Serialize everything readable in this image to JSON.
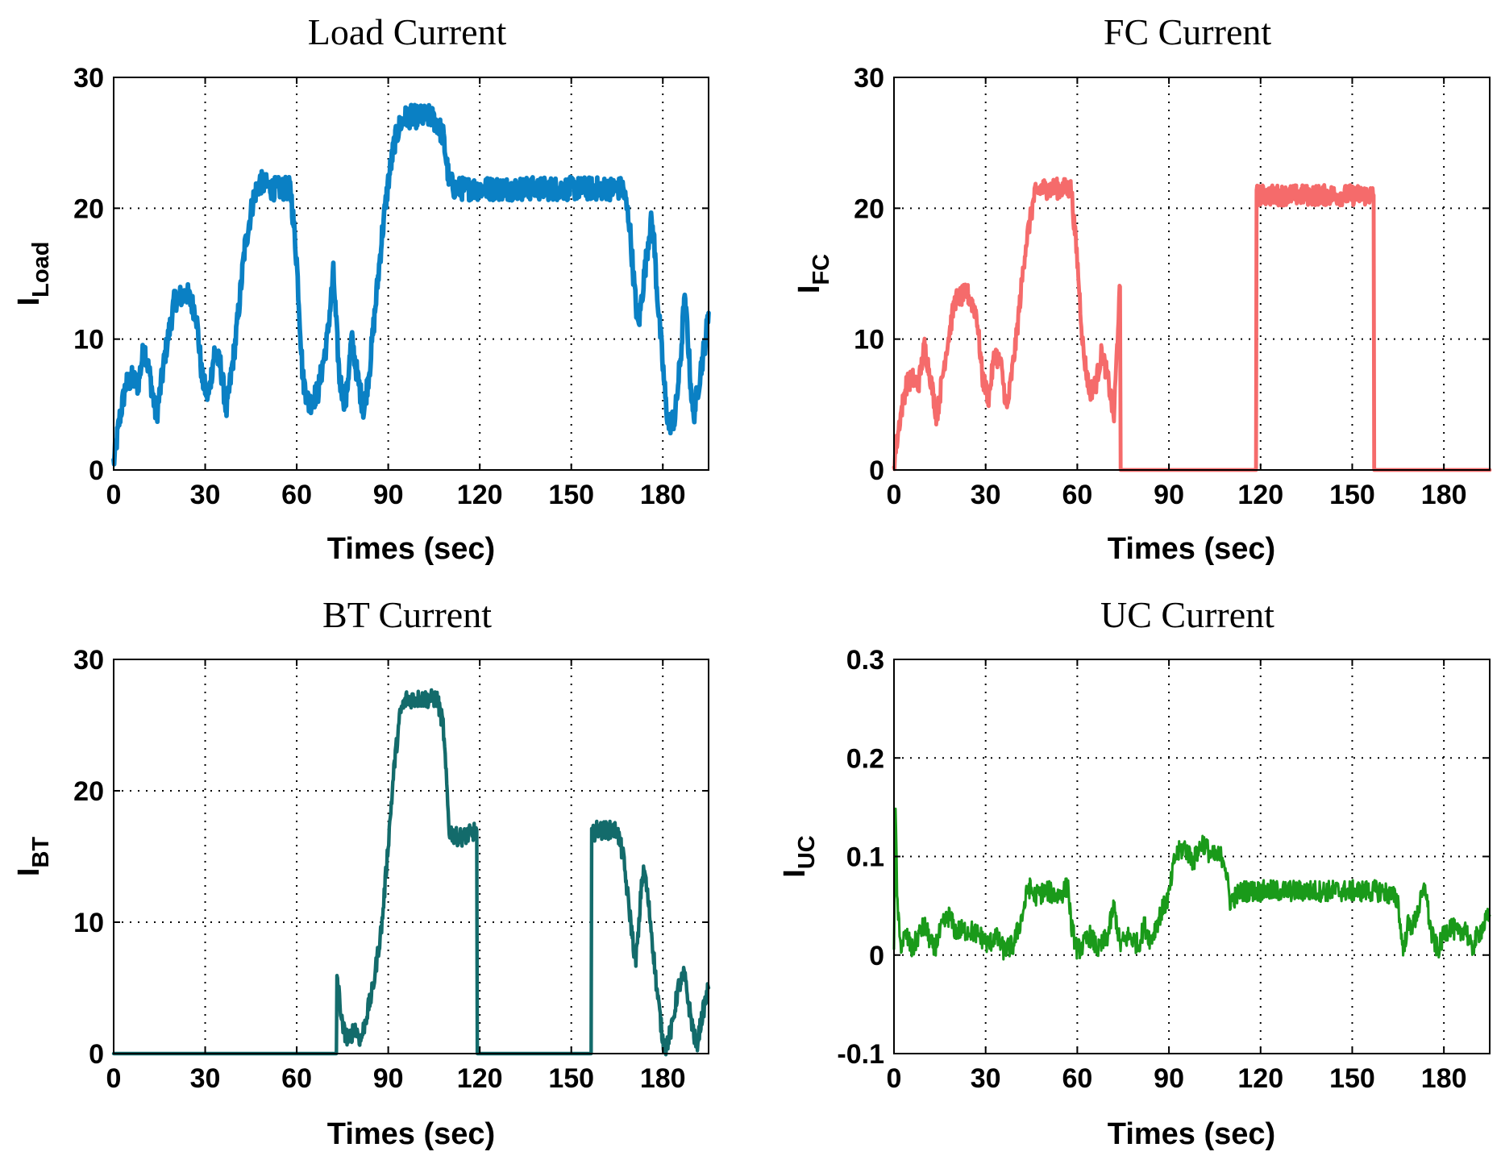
{
  "chart_data": [
    {
      "type": "line",
      "title": "Load Current",
      "xlabel": "Times (sec)",
      "ylabel": {
        "main": "I",
        "sub": "Load"
      },
      "xlim": [
        0,
        195
      ],
      "ylim": [
        0,
        30
      ],
      "xticks": [
        0,
        30,
        60,
        90,
        120,
        150,
        180
      ],
      "yticks": [
        0,
        10,
        20,
        30
      ],
      "ytick_labels": [
        "0",
        "10",
        "20",
        "30"
      ],
      "grid": true,
      "color": "#0a80c4",
      "noise_band": 0.9,
      "series": [
        {
          "name": "ILoad",
          "x": [
            0,
            2,
            4,
            6,
            8,
            10,
            12,
            14,
            17,
            20,
            24,
            27,
            29,
            31,
            33,
            35,
            37,
            40,
            43,
            46,
            48,
            52,
            55,
            58,
            60,
            62,
            64,
            67,
            70,
            72,
            74,
            76,
            78,
            80,
            82,
            84,
            86,
            88,
            90,
            92,
            94,
            96,
            98,
            100,
            102,
            104,
            106,
            108,
            110,
            112,
            115,
            120,
            130,
            140,
            150,
            160,
            163,
            165,
            167,
            169,
            170,
            171,
            172,
            174,
            176,
            177,
            178,
            179,
            180,
            181,
            182,
            184,
            186,
            187,
            188,
            189,
            190,
            192,
            194,
            195
          ],
          "y": [
            0.5,
            4,
            6.5,
            7,
            6.5,
            9.5,
            7,
            4,
            9,
            13,
            13.5,
            12,
            7,
            5.5,
            9,
            8,
            4.5,
            10,
            17,
            21,
            22,
            21.5,
            21.5,
            21.5,
            16,
            7,
            5,
            6,
            10,
            15,
            7,
            5,
            10,
            7,
            4.5,
            8,
            13,
            18,
            22,
            25,
            26.5,
            27,
            27,
            27,
            27,
            27,
            26.5,
            25.5,
            22,
            21.5,
            21.5,
            21.5,
            21.5,
            21.5,
            21.5,
            21.5,
            21.5,
            21.5,
            21.5,
            19,
            16,
            13,
            11,
            15,
            19,
            18,
            14,
            11,
            8,
            5,
            3.5,
            4,
            9,
            13,
            11,
            7,
            4,
            7,
            10,
            12
          ]
        }
      ]
    },
    {
      "type": "line",
      "title": "FC Current",
      "xlabel": "Times (sec)",
      "ylabel": {
        "main": "I",
        "sub": "FC"
      },
      "xlim": [
        0,
        195
      ],
      "ylim": [
        0,
        30
      ],
      "xticks": [
        0,
        30,
        60,
        90,
        120,
        150,
        180
      ],
      "yticks": [
        0,
        10,
        20,
        30
      ],
      "ytick_labels": [
        "0",
        "10",
        "20",
        "30"
      ],
      "grid": true,
      "color": "#f56b6b",
      "noise_band": 0.8,
      "series": [
        {
          "name": "IFC",
          "x": [
            0,
            2,
            4,
            6,
            8,
            10,
            12,
            14,
            17,
            20,
            24,
            27,
            29,
            31,
            33,
            35,
            37,
            40,
            43,
            46,
            48,
            52,
            55,
            58,
            60,
            62,
            64,
            66,
            68,
            70,
            72,
            73.5,
            74,
            74.2,
            90,
            118.5,
            118.7,
            120,
            130,
            140,
            150,
            157,
            157.2,
            170,
            185,
            195
          ],
          "y": [
            0.5,
            4,
            6.5,
            7,
            6.5,
            9.5,
            7,
            4,
            9,
            13,
            13.5,
            12,
            7,
            5.5,
            9,
            8,
            4.5,
            10,
            17,
            21,
            21.5,
            21.5,
            21.5,
            21.5,
            16,
            9,
            6,
            6.5,
            9,
            7,
            4,
            12,
            14,
            0,
            0,
            0,
            21,
            21,
            21,
            21,
            21,
            21,
            0,
            0,
            0,
            0
          ]
        }
      ]
    },
    {
      "type": "line",
      "title": "BT Current",
      "xlabel": "Times (sec)",
      "ylabel": {
        "main": "I",
        "sub": "BT"
      },
      "xlim": [
        0,
        195
      ],
      "ylim": [
        0,
        30
      ],
      "xticks": [
        0,
        30,
        60,
        90,
        120,
        150,
        180
      ],
      "yticks": [
        0,
        10,
        20,
        30
      ],
      "ytick_labels": [
        "0",
        "10",
        "20",
        "30"
      ],
      "grid": true,
      "color": "#136b6b",
      "noise_band": 0.7,
      "series": [
        {
          "name": "IBT",
          "x": [
            0,
            30,
            60,
            73,
            73.2,
            75,
            77,
            79,
            81,
            83,
            85,
            88,
            90,
            92,
            94,
            96,
            98,
            100,
            103,
            106,
            108,
            109,
            110,
            112,
            115,
            119,
            119.2,
            130,
            145,
            156.5,
            156.7,
            158,
            162,
            165,
            167,
            169,
            171,
            172,
            173,
            174,
            176,
            178,
            180,
            181,
            183,
            185,
            187,
            189,
            191,
            193,
            195
          ],
          "y": [
            0,
            0,
            0,
            0,
            6,
            2,
            1,
            2,
            1,
            3,
            5,
            10,
            16,
            22,
            26,
            27,
            27,
            27,
            27,
            27,
            25,
            21,
            17,
            16.5,
            16.5,
            17,
            0,
            0,
            0,
            0,
            16.5,
            17,
            17,
            17,
            15,
            11,
            7,
            9,
            13,
            14,
            10,
            5,
            1,
            0.5,
            2,
            5,
            6,
            3,
            0.5,
            3,
            5
          ]
        }
      ]
    },
    {
      "type": "line",
      "title": "UC Current",
      "xlabel": "Times (sec)",
      "ylabel": {
        "main": "I",
        "sub": "UC"
      },
      "xlim": [
        0,
        195
      ],
      "ylim": [
        -0.1,
        0.3
      ],
      "xticks": [
        0,
        30,
        60,
        90,
        120,
        150,
        180
      ],
      "yticks": [
        -0.1,
        0,
        0.1,
        0.2,
        0.3
      ],
      "ytick_labels": [
        "-0.1",
        "0",
        "0.1",
        "0.2",
        "0.3"
      ],
      "grid": true,
      "color": "#1a9a1a",
      "noise_band": 0.011,
      "series": [
        {
          "name": "IUC",
          "x": [
            0,
            0.5,
            1,
            2,
            4,
            6,
            8,
            10,
            13,
            16,
            18,
            20,
            25,
            28,
            31,
            33,
            36,
            39,
            42,
            44,
            46,
            50,
            54,
            57,
            58,
            60,
            62,
            64,
            67,
            70,
            72,
            74,
            77,
            80,
            82,
            84,
            87,
            90,
            92,
            95,
            98,
            101,
            104,
            106,
            108,
            110,
            114,
            120,
            130,
            140,
            150,
            160,
            163,
            165,
            166,
            167,
            168,
            170,
            172,
            174,
            175,
            176,
            178,
            180,
            182,
            185,
            187,
            189,
            191,
            193,
            195
          ],
          "y": [
            0.01,
            0.15,
            0.06,
            0.01,
            0.02,
            0.005,
            0.02,
            0.03,
            0.005,
            0.03,
            0.04,
            0.025,
            0.025,
            0.02,
            0.01,
            0.02,
            0.005,
            0.01,
            0.04,
            0.07,
            0.06,
            0.065,
            0.06,
            0.07,
            0.03,
            0.005,
            0.01,
            0.02,
            0.005,
            0.02,
            0.05,
            0.01,
            0.02,
            0.01,
            0.03,
            0.015,
            0.04,
            0.06,
            0.1,
            0.11,
            0.095,
            0.115,
            0.1,
            0.1,
            0.1,
            0.055,
            0.065,
            0.065,
            0.065,
            0.065,
            0.065,
            0.065,
            0.06,
            0.055,
            0.02,
            0.005,
            0.03,
            0.03,
            0.05,
            0.07,
            0.04,
            0.02,
            0.005,
            0.02,
            0.03,
            0.02,
            0.03,
            0.005,
            0.02,
            0.03,
            0.04
          ]
        }
      ]
    }
  ]
}
